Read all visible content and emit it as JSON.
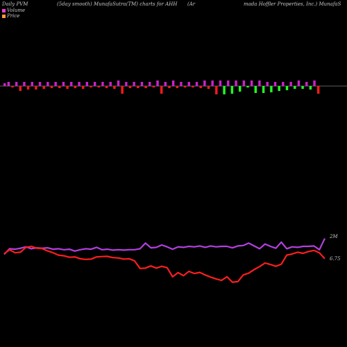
{
  "header": {
    "left": "Daily PVM",
    "middle": "(5day smooth) MunafaSutra(TM) charts for AHH",
    "company_open": "(Ar",
    "company_rest": "mada  Hoffler Properties, Inc.) MunafaS"
  },
  "legend": [
    {
      "label": "Volume",
      "color": "#ff3ad2"
    },
    {
      "label": "Price",
      "color": "#ff9e3a"
    }
  ],
  "colors": {
    "bar_up": "#cc22cc",
    "bar_down_red": "#ff1a1a",
    "bar_down_green": "#22ff22",
    "volume_line": "#b440e0",
    "price_line": "#ff1e1e",
    "zero_line": "#808080"
  },
  "chart_data": [
    {
      "type": "bar",
      "title": "",
      "series": [
        {
          "values": [
            4,
            6,
            -2,
            6,
            -7,
            6,
            -5,
            6,
            -5,
            6,
            -4,
            6,
            -3,
            6,
            -3,
            6,
            -4,
            6,
            -3,
            6,
            -4,
            6,
            -2,
            6,
            -2,
            6,
            -3,
            6,
            -4,
            8,
            -11,
            6,
            -3,
            6,
            -3,
            6,
            -3,
            6,
            -2,
            8,
            -11,
            6,
            -3,
            8,
            -3,
            6,
            -2,
            6,
            -2,
            6,
            -3,
            8,
            -4,
            8,
            -12,
            8,
            -12,
            8,
            -11,
            8,
            -8,
            8,
            -2,
            8,
            -10,
            8,
            -10,
            6,
            -9,
            6,
            -7,
            6,
            -6,
            6,
            -4,
            8,
            -4,
            6,
            -5,
            8,
            -11
          ]
        }
      ]
    },
    {
      "type": "line",
      "title": "",
      "y_ticks": [
        "2M",
        "6.75"
      ],
      "series": [
        {
          "name": "Volume",
          "values": [
            1.0,
            1.6,
            1.55,
            1.65,
            1.8,
            1.6,
            1.7,
            1.65,
            1.7,
            1.55,
            1.6,
            1.5,
            1.55,
            1.35,
            1.5,
            1.6,
            1.55,
            1.75,
            1.5,
            1.55,
            1.45,
            1.5,
            1.45,
            1.5,
            1.5,
            1.6,
            2.2,
            1.7,
            1.75,
            2.0,
            1.8,
            1.55,
            1.8,
            1.75,
            1.85,
            1.8,
            1.9,
            1.75,
            1.9,
            1.8,
            1.85,
            1.85,
            1.7,
            1.9,
            1.95,
            2.2,
            1.9,
            1.6,
            2.1,
            1.85,
            1.65,
            2.3,
            1.6,
            1.8,
            1.75,
            1.85,
            1.85,
            1.9,
            1.5,
            2.7
          ]
        },
        {
          "name": "Price",
          "values": [
            7.0,
            7.22,
            7.05,
            7.08,
            7.35,
            7.4,
            7.3,
            7.28,
            7.15,
            7.05,
            6.92,
            6.88,
            6.8,
            6.82,
            6.72,
            6.68,
            6.7,
            6.82,
            6.84,
            6.85,
            6.78,
            6.76,
            6.7,
            6.72,
            6.6,
            6.18,
            6.2,
            6.32,
            6.2,
            6.3,
            6.22,
            5.72,
            5.95,
            5.78,
            6.02,
            5.9,
            5.96,
            5.82,
            5.7,
            5.6,
            5.52,
            5.72,
            5.42,
            5.45,
            5.82,
            5.92,
            6.12,
            6.28,
            6.48,
            6.4,
            6.3,
            6.42,
            6.92,
            6.98,
            7.08,
            7.02,
            7.12,
            7.18,
            7.05,
            6.72
          ]
        }
      ]
    }
  ]
}
